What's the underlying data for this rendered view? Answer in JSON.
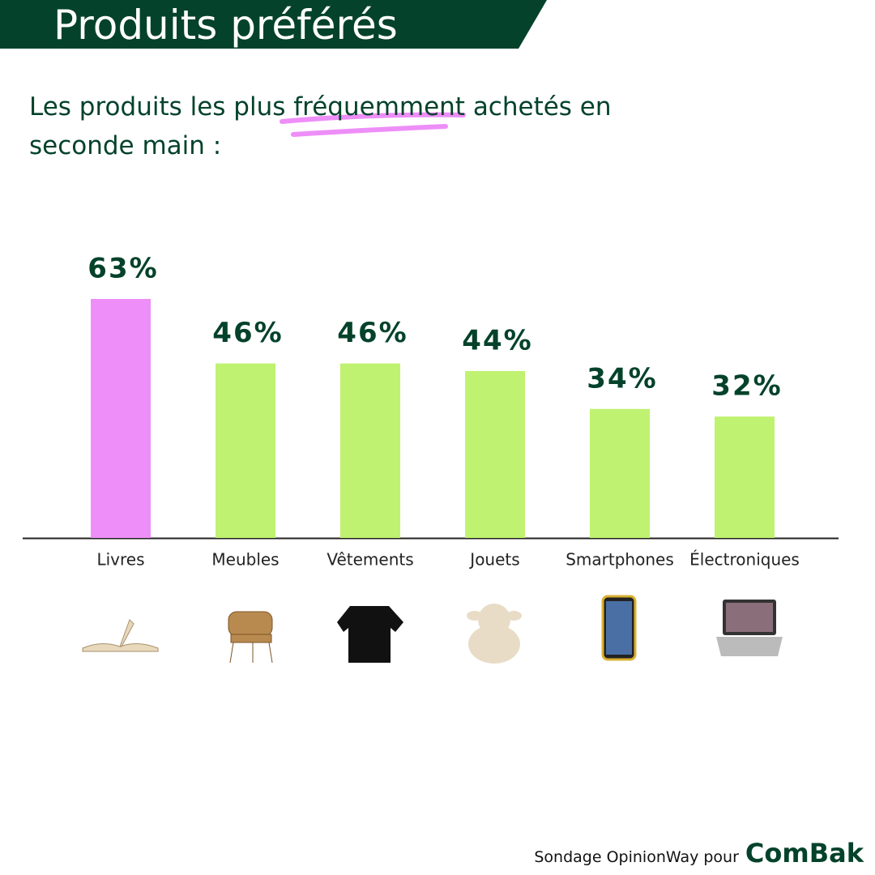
{
  "chart_data": {
    "type": "bar",
    "title": "Produits préférés",
    "subtitle": "Les produits les plus fréquemment achetés en seconde main :",
    "categories": [
      "Livres",
      "Meubles",
      "Vêtements",
      "Jouets",
      "Smartphones",
      "Électroniques"
    ],
    "values": [
      63,
      46,
      46,
      44,
      34,
      32
    ],
    "value_labels": [
      "63%",
      "46%",
      "46%",
      "44%",
      "34%",
      "32%"
    ],
    "colors": [
      "#ee8ef8",
      "#bff270",
      "#bff270",
      "#bff270",
      "#bff270",
      "#bff270"
    ],
    "source": "Sondage OpinionWay pour",
    "brand": "ComBak"
  }
}
